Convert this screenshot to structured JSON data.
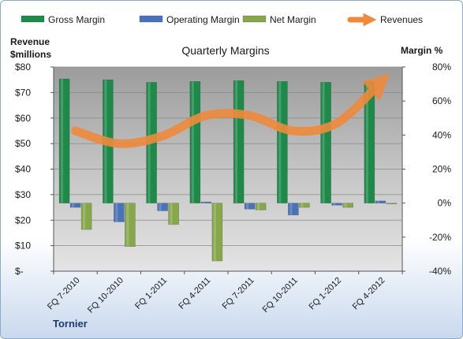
{
  "chart_data": {
    "type": "bar",
    "title": "Quarterly Margins",
    "company": "Tornier",
    "y_left_label": [
      "Revenue",
      "$millions"
    ],
    "y_right_label": "Margin %",
    "categories": [
      "FQ 7-2010",
      "FQ 10-2010",
      "FQ 1-2011",
      "FQ 4-2011",
      "FQ 7-2011",
      "FQ 10-2011",
      "FQ 1-2012",
      "FQ 4-2012"
    ],
    "y_left": {
      "min": 0,
      "max": 80,
      "ticks": [
        0,
        10,
        20,
        30,
        40,
        50,
        60,
        70,
        80
      ],
      "tick_labels": [
        "$-",
        "$10",
        "$20",
        "$30",
        "$40",
        "$50",
        "$60",
        "$70",
        "$80"
      ]
    },
    "y_right": {
      "min": -40,
      "max": 80,
      "ticks": [
        -40,
        -20,
        0,
        20,
        40,
        60,
        80
      ],
      "tick_labels": [
        "-40%",
        "-20%",
        "0%",
        "20%",
        "40%",
        "60%",
        "80%"
      ]
    },
    "grid": true,
    "legend_position": "top",
    "series": [
      {
        "name": "Gross Margin",
        "kind": "bar",
        "axis": "right",
        "color": "#1e8a4a",
        "values": [
          73,
          72.5,
          71,
          71.5,
          72,
          71.5,
          71,
          71.5
        ]
      },
      {
        "name": "Operating Margin",
        "kind": "bar",
        "axis": "right",
        "color": "#4a72b8",
        "values": [
          -2.5,
          -11,
          -4.5,
          0.7,
          -3.5,
          -7,
          -1.2,
          1.3
        ]
      },
      {
        "name": "Net Margin",
        "kind": "bar",
        "axis": "right",
        "color": "#86a84b",
        "values": [
          -15.5,
          -25.5,
          -12.5,
          -34,
          -4,
          -2.5,
          -2.5,
          -0.5
        ]
      },
      {
        "name": "Revenues",
        "kind": "line",
        "axis": "left",
        "color": "#ef8a3c",
        "values": [
          55,
          50,
          53,
          61,
          61,
          55,
          58,
          74
        ]
      }
    ]
  }
}
